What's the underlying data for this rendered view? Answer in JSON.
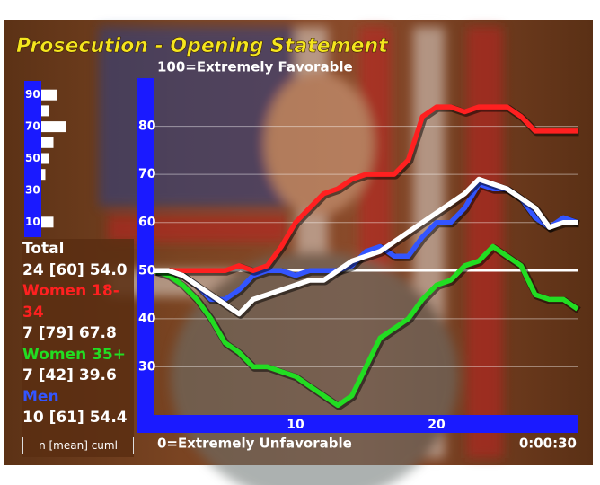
{
  "chart_data": [
    {
      "type": "line",
      "title": "Prosecution - Opening Statement",
      "top_label": "100=Extremely Favorable",
      "bottom_label": "0=Extremely Unfavorable",
      "time": "0:00:30",
      "x": [
        0,
        1,
        2,
        3,
        4,
        5,
        6,
        7,
        8,
        9,
        10,
        11,
        12,
        13,
        14,
        15,
        16,
        17,
        18,
        19,
        20,
        21,
        22,
        23,
        24,
        25,
        26,
        27,
        28,
        29,
        30
      ],
      "xlim": [
        0,
        30
      ],
      "xticks": [
        10,
        20
      ],
      "ylim": [
        20,
        90
      ],
      "yticks": [
        30,
        40,
        50,
        60,
        70,
        80
      ],
      "grid": true,
      "reference_line": 50,
      "legend_footer": "n [mean] cuml",
      "series": [
        {
          "name": "Total",
          "color": "#ffffff",
          "summary": "24 [60] 54.0",
          "values": [
            50,
            50,
            49,
            47,
            45,
            43,
            41,
            44,
            45,
            46,
            47,
            48,
            48,
            50,
            52,
            53,
            54,
            56,
            58,
            60,
            62,
            64,
            66,
            69,
            68,
            67,
            65,
            63,
            59,
            60,
            60
          ]
        },
        {
          "name": "Women 18-34",
          "color": "#ff2020",
          "summary": "7 [79] 67.8",
          "values": [
            50,
            50,
            50,
            50,
            50,
            50,
            51,
            50,
            51,
            55,
            60,
            63,
            66,
            67,
            69,
            70,
            70,
            70,
            73,
            82,
            84,
            84,
            83,
            84,
            84,
            84,
            82,
            79,
            79,
            79,
            79
          ]
        },
        {
          "name": "Women 35+",
          "color": "#22dd22",
          "summary": "7 [42] 39.6",
          "values": [
            50,
            49,
            47,
            44,
            40,
            35,
            33,
            30,
            30,
            29,
            28,
            26,
            24,
            22,
            24,
            30,
            36,
            38,
            40,
            44,
            47,
            48,
            51,
            52,
            55,
            53,
            51,
            45,
            44,
            44,
            42
          ]
        },
        {
          "name": "Men",
          "color": "#3355ff",
          "summary": "10 [61] 54.4",
          "values": [
            50,
            50,
            49,
            47,
            44,
            44,
            46,
            49,
            50,
            50,
            49,
            50,
            50,
            50,
            51,
            54,
            55,
            53,
            53,
            57,
            60,
            60,
            63,
            68,
            67,
            67,
            65,
            61,
            59,
            61,
            60
          ]
        }
      ]
    },
    {
      "type": "hbar",
      "y": [
        90,
        80,
        70,
        60,
        50,
        40,
        10
      ],
      "values": [
        4,
        2,
        6,
        3,
        2,
        1,
        3
      ],
      "ylim": [
        0,
        100
      ],
      "yticks": [
        10,
        30,
        50,
        70,
        90
      ],
      "xlim": [
        0,
        10
      ],
      "color": "#ffffff"
    }
  ]
}
